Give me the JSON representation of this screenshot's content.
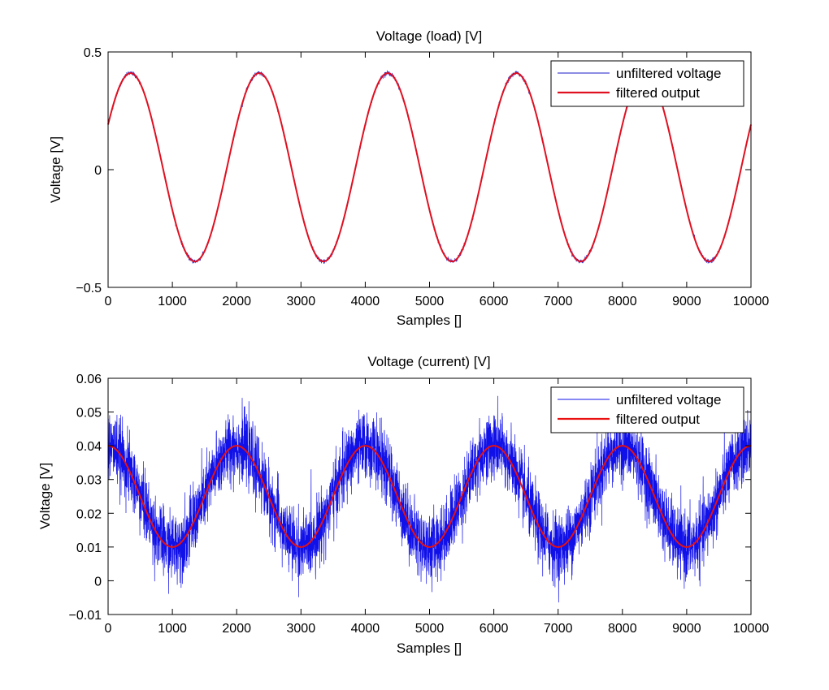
{
  "chart_data": [
    {
      "type": "line",
      "title": "Voltage (load) [V]",
      "xlabel": "Samples []",
      "ylabel": "Voltage [V]",
      "xlim": [
        0,
        10000
      ],
      "ylim": [
        -0.5,
        0.5
      ],
      "xticks": [
        0,
        1000,
        2000,
        3000,
        4000,
        5000,
        6000,
        7000,
        8000,
        9000,
        10000
      ],
      "yticks": [
        -0.5,
        0,
        0.5
      ],
      "ytick_labels": [
        "−0.5",
        "0",
        "0.5"
      ],
      "grid": false,
      "legend_position": "top-right",
      "signal": {
        "amplitude": 0.4,
        "offset": 0.01,
        "period": 2000,
        "peak_at": 350,
        "noise": 0.008
      },
      "series": [
        {
          "name": "unfiltered voltage",
          "color": "#1818c8",
          "noisy": true
        },
        {
          "name": "filtered output",
          "color": "#e01020",
          "noisy": false
        }
      ]
    },
    {
      "type": "line",
      "title": "Voltage (current) [V]",
      "xlabel": "Samples []",
      "ylabel": "Voltage [V]",
      "xlim": [
        0,
        10000
      ],
      "ylim": [
        -0.01,
        0.06
      ],
      "xticks": [
        0,
        1000,
        2000,
        3000,
        4000,
        5000,
        6000,
        7000,
        8000,
        9000,
        10000
      ],
      "yticks": [
        -0.01,
        0,
        0.01,
        0.02,
        0.03,
        0.04,
        0.05,
        0.06
      ],
      "ytick_labels": [
        "−0.01",
        "0",
        "0.01",
        "0.02",
        "0.03",
        "0.04",
        "0.05",
        "0.06"
      ],
      "grid": false,
      "legend_position": "top-right",
      "signal": {
        "amplitude": 0.015,
        "offset": 0.025,
        "period": 2000,
        "peak_at": 0,
        "noise": 0.009
      },
      "series": [
        {
          "name": "unfiltered voltage",
          "color": "#1010e8",
          "noisy": true
        },
        {
          "name": "filtered output",
          "color": "#e81010",
          "noisy": false
        }
      ]
    }
  ]
}
